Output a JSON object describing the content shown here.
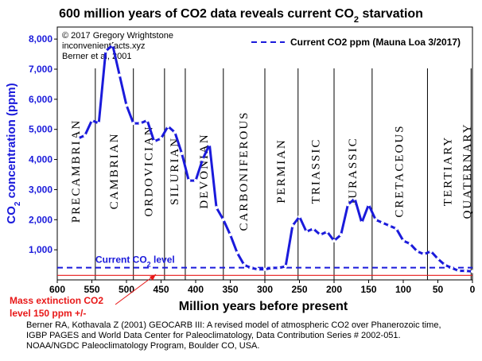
{
  "chart_data": {
    "type": "line",
    "title_main": "600 million years of CO2 data reveals current CO",
    "title_sub": "2",
    "title_end": " starvation",
    "credits": [
      "© 2017 Gregory Wrightstone",
      "inconvenientfacts.xyz",
      "Berner et al, 2001"
    ],
    "legend_label": "Current CO2 ppm (Mauna Loa 3/2017)",
    "ylabel_prefix": "CO",
    "ylabel_sub": "2",
    "ylabel_suffix": " concentration (ppm)",
    "xlabel": "Million years before present",
    "xlim": [
      600,
      0
    ],
    "ylim": [
      0,
      8400
    ],
    "x_ticks": [
      600,
      550,
      500,
      450,
      400,
      350,
      300,
      250,
      200,
      150,
      100,
      50,
      0
    ],
    "y_ticks": [
      1000,
      2000,
      3000,
      4000,
      5000,
      6000,
      7000,
      8000
    ],
    "y_tick_labels": [
      "1,000",
      "2,000",
      "3,000",
      "4,000",
      "5,000",
      "6,000",
      "7,000",
      "8,000"
    ],
    "current_co2_ppm": 405,
    "current_label_prefix": "Current CO",
    "current_label_sub": "2",
    "current_label_suffix": " level",
    "mass_extinction_ppm": 150,
    "annotation_lines": [
      "Mass extinction CO2",
      "level 150 ppm +/-"
    ],
    "periods": [
      {
        "name": "PRECAMBRIAN",
        "start": 600,
        "end": 545
      },
      {
        "name": "CAMBRIAN",
        "start": 545,
        "end": 490
      },
      {
        "name": "ORDOVICIAN",
        "start": 490,
        "end": 445
      },
      {
        "name": "SILURIAN",
        "start": 445,
        "end": 415
      },
      {
        "name": "DEVONIAN",
        "start": 415,
        "end": 360
      },
      {
        "name": "CARBONIFEROUS",
        "start": 360,
        "end": 300
      },
      {
        "name": "PERMIAN",
        "start": 300,
        "end": 252
      },
      {
        "name": "TRIASSIC",
        "start": 252,
        "end": 200
      },
      {
        "name": "JURASSIC",
        "start": 200,
        "end": 145
      },
      {
        "name": "CRETACEOUS",
        "start": 145,
        "end": 65
      },
      {
        "name": "TERTIARY",
        "start": 65,
        "end": 2
      },
      {
        "name": "QUATERNARY",
        "start": 2,
        "end": 0
      }
    ],
    "series": [
      {
        "name": "CO2 concentration",
        "x": [
          570,
          560,
          550,
          540,
          530,
          520,
          510,
          500,
          490,
          480,
          470,
          460,
          450,
          440,
          430,
          420,
          410,
          400,
          390,
          380,
          370,
          360,
          350,
          340,
          330,
          320,
          310,
          300,
          290,
          280,
          270,
          260,
          250,
          240,
          230,
          220,
          210,
          200,
          190,
          180,
          170,
          160,
          150,
          140,
          130,
          120,
          110,
          100,
          90,
          80,
          70,
          60,
          50,
          40,
          30,
          20,
          10,
          0
        ],
        "values": [
          4700,
          4800,
          5300,
          5200,
          7600,
          7800,
          6800,
          5800,
          5200,
          5200,
          5300,
          4600,
          4700,
          5100,
          4900,
          4200,
          3300,
          3300,
          4000,
          4500,
          2400,
          2000,
          1500,
          900,
          500,
          400,
          350,
          350,
          400,
          400,
          450,
          1800,
          2100,
          1600,
          1700,
          1500,
          1600,
          1300,
          1500,
          2500,
          2700,
          1900,
          2500,
          2000,
          1900,
          1800,
          1700,
          1300,
          1200,
          950,
          850,
          950,
          700,
          500,
          400,
          300,
          300,
          280
        ]
      }
    ],
    "citation_lines": [
      "Berner RA, Kothavala Z (2001) GEOCARB III: A revised model of atmospheric CO2 over Phanerozoic time,",
      "IGBP PAGES and World Data Center for Paleoclimatology, Data Contribution Series # 2002-051.",
      "NOAA/NGDC Paleoclimatology Program, Boulder CO, USA."
    ],
    "colors": {
      "line": "#1a1adb",
      "axis_text": "#1a1adb",
      "current_line": "#1a1adb",
      "extinction_line": "#e81818",
      "annotation": "#e81818",
      "grid": "#000000"
    }
  }
}
